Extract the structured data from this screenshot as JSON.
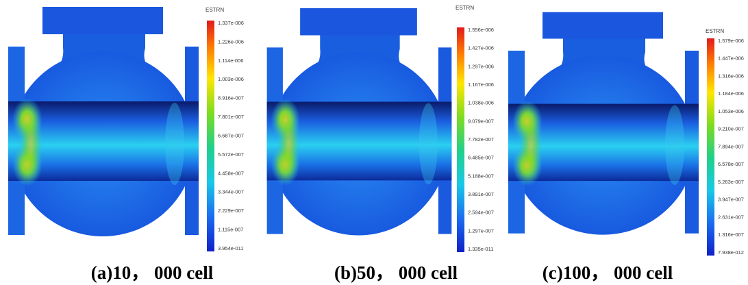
{
  "panels": [
    {
      "legend_title": "ESTRN",
      "ticks": [
        "1.337e-006",
        "1.226e-006",
        "1.114e-006",
        "1.003e-006",
        "8.916e-007",
        "7.801e-007",
        "6.687e-007",
        "5.572e-007",
        "4.458e-007",
        "3.344e-007",
        "2.229e-007",
        "1.115e-007",
        "3.954e-011"
      ],
      "caption": "(a)10， 000 cell"
    },
    {
      "legend_title": "ESTRN",
      "ticks": [
        "1.556e-006",
        "1.427e-006",
        "1.297e-006",
        "1.167e-006",
        "1.038e-006",
        "9.079e-007",
        "7.782e-007",
        "6.485e-007",
        "5.188e-007",
        "3.891e-007",
        "2.594e-007",
        "1.297e-007",
        "1.335e-011"
      ],
      "caption": "(b)50， 000 cell"
    },
    {
      "legend_title": "ESTRN",
      "ticks": [
        "1.579e-006",
        "1.447e-006",
        "1.316e-006",
        "1.184e-006",
        "1.053e-006",
        "9.210e-007",
        "7.894e-007",
        "6.578e-007",
        "5.263e-007",
        "3.947e-007",
        "2.631e-007",
        "1.316e-007",
        "7.938e-012"
      ],
      "caption": "(c)100， 000 cell"
    }
  ]
}
